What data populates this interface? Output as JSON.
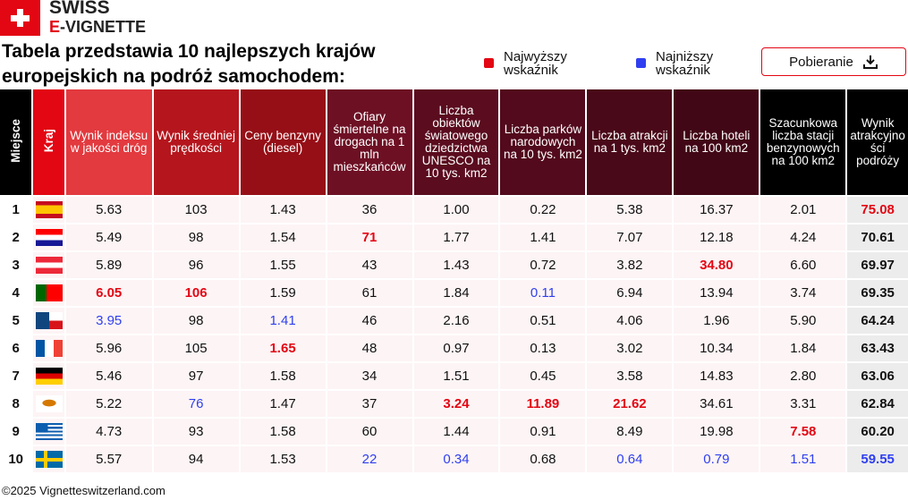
{
  "header": {
    "logo": {
      "line1": "SWISS",
      "line2_accent": "E",
      "line2": "-VIGNETTE"
    },
    "title": "Tabela przedstawia 10 najlepszych krajów europejskich na podróż samochodem:",
    "legend": [
      {
        "label": "Najwyższy wskaźnik",
        "color": "#e30613"
      },
      {
        "label": "Najniższy wskaźnik",
        "color": "#2f3ff0"
      }
    ],
    "button": "Pobieranie"
  },
  "table": {
    "columns": [
      {
        "label": "Miejsce",
        "color": "#000000"
      },
      {
        "label": "Kraj",
        "color": "#e30613"
      },
      {
        "label": "Wynik indeksu w jakości dróg",
        "color": "#e23a3f"
      },
      {
        "label": "Wynik średniej prędkości",
        "color": "#b5161d"
      },
      {
        "label": "Ceny benzyny (diesel)",
        "color": "#960f17"
      },
      {
        "label": "Ofiary śmiertelne na drogach na 1 mln mieszkańców",
        "color": "#6e1024"
      },
      {
        "label": "Liczba obiektów światowego dziedzictwa UNESCO na 10 tys. km2",
        "color": "#5b0c1f"
      },
      {
        "label": "Liczba parków narodowych na 10 tys. km2",
        "color": "#520a1c"
      },
      {
        "label": "Liczba atrakcji na 1 tys. km2",
        "color": "#4a0919"
      },
      {
        "label": "Liczba hoteli na 100 km2",
        "color": "#420716"
      },
      {
        "label": "Szacunkowa liczba stacji benzynowych na 100 km2",
        "color": "#000000"
      },
      {
        "label": "Wynik atrakcyjności podróży",
        "color": "#000000"
      }
    ],
    "rows": [
      {
        "rank": 1,
        "cells": [
          "5.63",
          "103",
          "1.43",
          "36",
          "1.00",
          "0.22",
          "5.38",
          "16.37",
          "2.01",
          "75.08"
        ],
        "high": [
          9
        ],
        "low": []
      },
      {
        "rank": 2,
        "cells": [
          "5.49",
          "98",
          "1.54",
          "71",
          "1.77",
          "1.41",
          "7.07",
          "12.18",
          "4.24",
          "70.61"
        ],
        "high": [
          3
        ],
        "low": []
      },
      {
        "rank": 3,
        "cells": [
          "5.89",
          "96",
          "1.55",
          "43",
          "1.43",
          "0.72",
          "3.82",
          "34.80",
          "6.60",
          "69.97"
        ],
        "high": [
          7
        ],
        "low": []
      },
      {
        "rank": 4,
        "cells": [
          "6.05",
          "106",
          "1.59",
          "61",
          "1.84",
          "0.11",
          "6.94",
          "13.94",
          "3.74",
          "69.35"
        ],
        "high": [
          0,
          1
        ],
        "low": [
          5
        ]
      },
      {
        "rank": 5,
        "cells": [
          "3.95",
          "98",
          "1.41",
          "46",
          "2.16",
          "0.51",
          "4.06",
          "1.96",
          "5.90",
          "64.24"
        ],
        "high": [],
        "low": [
          0,
          2
        ]
      },
      {
        "rank": 6,
        "cells": [
          "5.96",
          "105",
          "1.65",
          "48",
          "0.97",
          "0.13",
          "3.02",
          "10.34",
          "1.84",
          "63.43"
        ],
        "high": [
          2
        ],
        "low": []
      },
      {
        "rank": 7,
        "cells": [
          "5.46",
          "97",
          "1.58",
          "34",
          "1.51",
          "0.45",
          "3.58",
          "14.83",
          "2.80",
          "63.06"
        ],
        "high": [],
        "low": []
      },
      {
        "rank": 8,
        "cells": [
          "5.22",
          "76",
          "1.47",
          "37",
          "3.24",
          "11.89",
          "21.62",
          "34.61",
          "3.31",
          "62.84"
        ],
        "high": [
          4,
          5,
          6
        ],
        "low": [
          1
        ]
      },
      {
        "rank": 9,
        "cells": [
          "4.73",
          "93",
          "1.58",
          "60",
          "1.44",
          "0.91",
          "8.49",
          "19.98",
          "7.58",
          "60.20"
        ],
        "high": [
          8
        ],
        "low": []
      },
      {
        "rank": 10,
        "cells": [
          "5.57",
          "94",
          "1.53",
          "22",
          "0.34",
          "0.68",
          "0.64",
          "0.79",
          "1.51",
          "59.55"
        ],
        "high": [],
        "low": [
          3,
          4,
          6,
          7,
          8,
          9
        ]
      }
    ]
  },
  "footer": "©2025 Vignetteswitzerland.com"
}
